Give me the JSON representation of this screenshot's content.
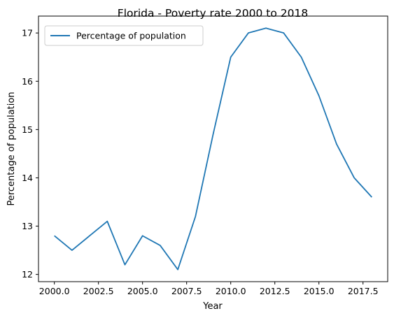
{
  "chart_data": {
    "type": "line",
    "title": "Florida - Poverty rate 2000 to 2018",
    "xlabel": "Year",
    "ylabel": "Percentage of population",
    "xlim": [
      1999.1,
      2018.9
    ],
    "ylim": [
      11.85,
      17.35
    ],
    "x_ticks": [
      2000.0,
      2002.5,
      2005.0,
      2007.5,
      2010.0,
      2012.5,
      2015.0,
      2017.5
    ],
    "x_tick_labels": [
      "2000.0",
      "2002.5",
      "2005.0",
      "2007.5",
      "2010.0",
      "2012.5",
      "2015.0",
      "2017.5"
    ],
    "y_ticks": [
      12,
      13,
      14,
      15,
      16,
      17
    ],
    "y_tick_labels": [
      "12",
      "13",
      "14",
      "15",
      "16",
      "17"
    ],
    "grid": false,
    "legend": {
      "position": "top-left"
    },
    "series": [
      {
        "name": "Percentage of population",
        "color": "#1f77b4",
        "x": [
          2000,
          2001,
          2002,
          2003,
          2004,
          2005,
          2006,
          2007,
          2008,
          2009,
          2010,
          2011,
          2012,
          2013,
          2014,
          2015,
          2016,
          2017,
          2018
        ],
        "y": [
          12.8,
          12.5,
          12.8,
          13.1,
          12.2,
          12.8,
          12.6,
          12.1,
          13.2,
          14.9,
          16.5,
          17.0,
          17.1,
          17.0,
          16.5,
          15.7,
          14.7,
          14.0,
          13.6
        ]
      }
    ]
  }
}
